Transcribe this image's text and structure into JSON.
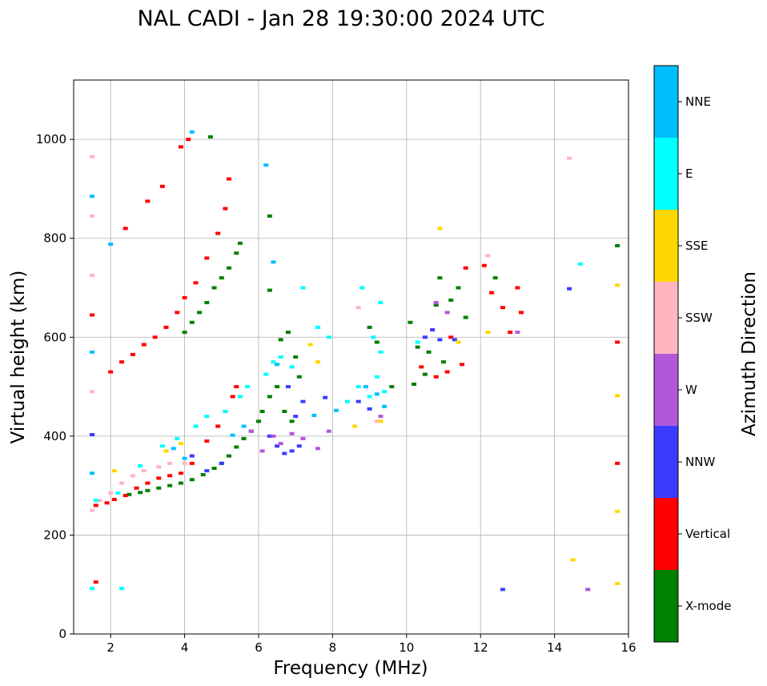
{
  "chart_data": {
    "type": "scatter",
    "title": "NAL CADI - Jan 28 19:30:00 2024 UTC",
    "xlabel": "Frequency (MHz)",
    "ylabel": "Virtual height (km)",
    "xlim": [
      1,
      16
    ],
    "ylim": [
      0,
      1120
    ],
    "xticks": [
      2,
      4,
      6,
      8,
      10,
      12,
      14,
      16
    ],
    "yticks": [
      0,
      200,
      400,
      600,
      800,
      1000
    ],
    "grid": true,
    "colorbar": {
      "label": "Azimuth Direction",
      "categories": [
        {
          "name": "X-mode",
          "color": "#008000"
        },
        {
          "name": "Vertical",
          "color": "#ff0000"
        },
        {
          "name": "NNW",
          "color": "#3b3bff"
        },
        {
          "name": "W",
          "color": "#b158d8"
        },
        {
          "name": "SSW",
          "color": "#ffb6c1"
        },
        {
          "name": "SSE",
          "color": "#ffd700"
        },
        {
          "name": "E",
          "color": "#00ffff"
        },
        {
          "name": "NNE",
          "color": "#00bfff"
        }
      ]
    },
    "series": [
      {
        "name": "X-mode",
        "points": [
          [
            2.5,
            282
          ],
          [
            2.8,
            286
          ],
          [
            3.0,
            290
          ],
          [
            3.3,
            295
          ],
          [
            3.6,
            300
          ],
          [
            3.9,
            305
          ],
          [
            4.2,
            312
          ],
          [
            4.5,
            322
          ],
          [
            4.8,
            335
          ],
          [
            5.0,
            345
          ],
          [
            5.2,
            360
          ],
          [
            5.4,
            378
          ],
          [
            5.6,
            395
          ],
          [
            5.8,
            410
          ],
          [
            6.0,
            430
          ],
          [
            6.1,
            450
          ],
          [
            6.3,
            480
          ],
          [
            6.5,
            500
          ],
          [
            6.7,
            450
          ],
          [
            6.9,
            430
          ],
          [
            7.1,
            520
          ],
          [
            4.0,
            610
          ],
          [
            4.2,
            630
          ],
          [
            4.4,
            650
          ],
          [
            4.6,
            670
          ],
          [
            4.8,
            700
          ],
          [
            5.0,
            720
          ],
          [
            5.2,
            740
          ],
          [
            5.4,
            770
          ],
          [
            5.5,
            790
          ],
          [
            4.7,
            1005
          ],
          [
            6.3,
            845
          ],
          [
            6.3,
            695
          ],
          [
            6.6,
            595
          ],
          [
            6.8,
            610
          ],
          [
            7.0,
            560
          ],
          [
            9.0,
            620
          ],
          [
            9.2,
            590
          ],
          [
            10.1,
            630
          ],
          [
            10.3,
            580
          ],
          [
            10.6,
            570
          ],
          [
            10.8,
            665
          ],
          [
            11.0,
            550
          ],
          [
            11.2,
            675
          ],
          [
            11.4,
            700
          ],
          [
            11.6,
            640
          ],
          [
            12.4,
            720
          ],
          [
            10.9,
            720
          ],
          [
            15.7,
            785
          ],
          [
            9.6,
            500
          ],
          [
            10.2,
            505
          ],
          [
            10.5,
            525
          ]
        ]
      },
      {
        "name": "Vertical",
        "points": [
          [
            1.6,
            260
          ],
          [
            1.9,
            265
          ],
          [
            2.1,
            272
          ],
          [
            2.4,
            280
          ],
          [
            2.7,
            295
          ],
          [
            3.0,
            305
          ],
          [
            3.3,
            315
          ],
          [
            3.6,
            320
          ],
          [
            3.9,
            325
          ],
          [
            4.2,
            345
          ],
          [
            4.6,
            390
          ],
          [
            4.9,
            420
          ],
          [
            5.1,
            450
          ],
          [
            5.3,
            480
          ],
          [
            5.4,
            500
          ],
          [
            2.0,
            530
          ],
          [
            2.3,
            550
          ],
          [
            2.6,
            565
          ],
          [
            2.9,
            585
          ],
          [
            3.2,
            600
          ],
          [
            3.5,
            620
          ],
          [
            3.8,
            650
          ],
          [
            4.0,
            680
          ],
          [
            4.3,
            710
          ],
          [
            4.6,
            760
          ],
          [
            4.9,
            810
          ],
          [
            5.1,
            860
          ],
          [
            5.2,
            920
          ],
          [
            3.4,
            905
          ],
          [
            3.0,
            875
          ],
          [
            4.1,
            1000
          ],
          [
            3.9,
            985
          ],
          [
            2.4,
            820
          ],
          [
            1.5,
            645
          ],
          [
            1.6,
            105
          ],
          [
            10.4,
            540
          ],
          [
            10.8,
            520
          ],
          [
            11.1,
            530
          ],
          [
            11.5,
            545
          ],
          [
            11.2,
            600
          ],
          [
            11.6,
            740
          ],
          [
            12.1,
            745
          ],
          [
            12.3,
            690
          ],
          [
            12.6,
            660
          ],
          [
            12.8,
            610
          ],
          [
            13.0,
            700
          ],
          [
            13.1,
            650
          ],
          [
            15.7,
            590
          ],
          [
            15.7,
            345
          ]
        ]
      },
      {
        "name": "NNW",
        "points": [
          [
            4.2,
            360
          ],
          [
            4.6,
            330
          ],
          [
            5.0,
            345
          ],
          [
            6.3,
            400
          ],
          [
            6.5,
            380
          ],
          [
            6.7,
            365
          ],
          [
            6.9,
            370
          ],
          [
            7.1,
            380
          ],
          [
            7.0,
            440
          ],
          [
            6.8,
            500
          ],
          [
            7.2,
            470
          ],
          [
            7.8,
            478
          ],
          [
            8.7,
            470
          ],
          [
            9.0,
            455
          ],
          [
            10.5,
            600
          ],
          [
            10.7,
            615
          ],
          [
            10.9,
            595
          ],
          [
            11.3,
            595
          ],
          [
            14.4,
            698
          ],
          [
            12.6,
            90
          ],
          [
            1.5,
            403
          ]
        ]
      },
      {
        "name": "W",
        "points": [
          [
            5.8,
            410
          ],
          [
            6.1,
            370
          ],
          [
            6.4,
            400
          ],
          [
            6.6,
            385
          ],
          [
            6.9,
            405
          ],
          [
            7.2,
            395
          ],
          [
            7.6,
            375
          ],
          [
            7.9,
            410
          ],
          [
            9.3,
            440
          ],
          [
            10.8,
            670
          ],
          [
            11.1,
            650
          ],
          [
            13.0,
            610
          ],
          [
            14.9,
            90
          ]
        ]
      },
      {
        "name": "SSW",
        "points": [
          [
            1.5,
            250
          ],
          [
            1.7,
            270
          ],
          [
            2.0,
            285
          ],
          [
            2.3,
            305
          ],
          [
            2.6,
            320
          ],
          [
            2.9,
            330
          ],
          [
            3.3,
            338
          ],
          [
            3.6,
            345
          ],
          [
            4.0,
            345
          ],
          [
            1.5,
            725
          ],
          [
            1.5,
            845
          ],
          [
            1.5,
            965
          ],
          [
            8.7,
            660
          ],
          [
            9.2,
            430
          ],
          [
            12.2,
            765
          ],
          [
            14.4,
            962
          ],
          [
            1.5,
            490
          ]
        ]
      },
      {
        "name": "SSE",
        "points": [
          [
            2.1,
            330
          ],
          [
            3.5,
            370
          ],
          [
            3.9,
            385
          ],
          [
            7.4,
            585
          ],
          [
            7.6,
            550
          ],
          [
            8.6,
            420
          ],
          [
            9.3,
            430
          ],
          [
            10.9,
            820
          ],
          [
            11.4,
            590
          ],
          [
            12.2,
            610
          ],
          [
            15.7,
            705
          ],
          [
            15.7,
            482
          ],
          [
            15.7,
            248
          ],
          [
            15.7,
            102
          ],
          [
            14.5,
            150
          ]
        ]
      },
      {
        "name": "E",
        "points": [
          [
            1.6,
            270
          ],
          [
            2.2,
            285
          ],
          [
            2.8,
            340
          ],
          [
            3.4,
            380
          ],
          [
            3.8,
            395
          ],
          [
            4.3,
            420
          ],
          [
            4.6,
            440
          ],
          [
            5.1,
            450
          ],
          [
            5.5,
            480
          ],
          [
            5.7,
            500
          ],
          [
            6.2,
            525
          ],
          [
            6.4,
            550
          ],
          [
            6.6,
            560
          ],
          [
            6.9,
            540
          ],
          [
            7.2,
            700
          ],
          [
            7.6,
            620
          ],
          [
            7.9,
            600
          ],
          [
            8.4,
            470
          ],
          [
            8.7,
            500
          ],
          [
            9.0,
            480
          ],
          [
            9.2,
            520
          ],
          [
            9.4,
            490
          ],
          [
            9.3,
            670
          ],
          [
            8.8,
            700
          ],
          [
            9.1,
            600
          ],
          [
            9.3,
            570
          ],
          [
            10.3,
            590
          ],
          [
            14.7,
            748
          ],
          [
            2.3,
            92
          ],
          [
            1.5,
            92
          ]
        ]
      },
      {
        "name": "NNE",
        "points": [
          [
            1.5,
            885
          ],
          [
            1.5,
            570
          ],
          [
            1.5,
            325
          ],
          [
            2.0,
            788
          ],
          [
            6.2,
            948
          ],
          [
            6.4,
            752
          ],
          [
            4.2,
            1015
          ],
          [
            3.7,
            375
          ],
          [
            4.0,
            355
          ],
          [
            7.5,
            442
          ],
          [
            8.1,
            452
          ],
          [
            8.9,
            500
          ],
          [
            9.2,
            485
          ],
          [
            9.4,
            460
          ],
          [
            5.3,
            402
          ],
          [
            5.6,
            420
          ],
          [
            6.5,
            545
          ]
        ]
      }
    ]
  }
}
